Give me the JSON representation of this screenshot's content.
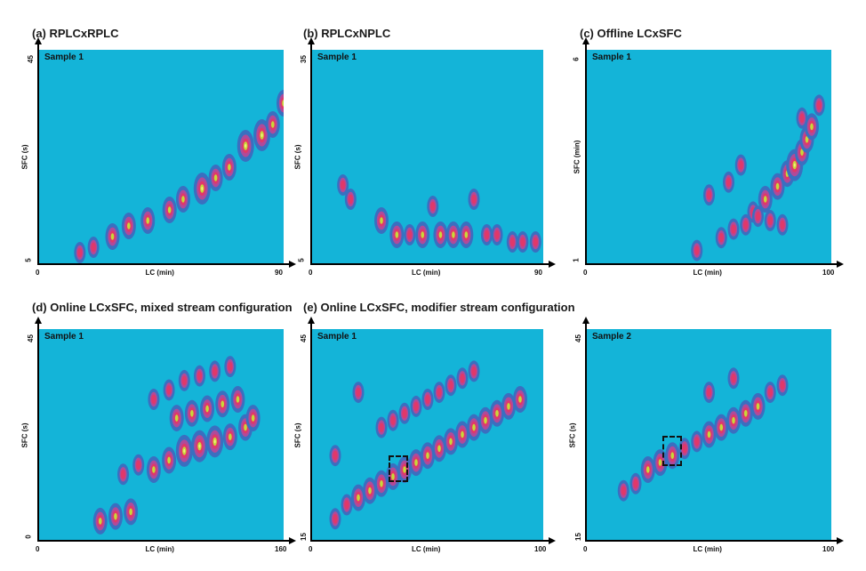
{
  "chart_data": [
    {
      "id": "a",
      "type": "heatmap",
      "title": "(a) RPLCxRPLC",
      "sample": "Sample 1",
      "xlabel": "LC (min)",
      "ylabel": "SFC (s)",
      "xlim": [
        0,
        90
      ],
      "ylim": [
        5,
        45
      ],
      "xticks": [
        "0",
        "90"
      ],
      "yticks": [
        "5",
        "45"
      ],
      "peaks": [
        [
          15,
          7,
          1
        ],
        [
          20,
          8,
          1
        ],
        [
          27,
          10,
          2
        ],
        [
          33,
          12,
          2
        ],
        [
          40,
          13,
          2
        ],
        [
          48,
          15,
          2
        ],
        [
          53,
          17,
          2
        ],
        [
          60,
          19,
          3
        ],
        [
          65,
          21,
          2
        ],
        [
          70,
          23,
          2
        ],
        [
          76,
          27,
          3
        ],
        [
          82,
          29,
          3
        ],
        [
          86,
          31,
          2
        ],
        [
          90,
          35,
          2
        ]
      ]
    },
    {
      "id": "b",
      "type": "heatmap",
      "title": "(b) RPLCxNPLC",
      "sample": "Sample 1",
      "xlabel": "LC (min)",
      "ylabel": "SFC (s)",
      "xlim": [
        0,
        90
      ],
      "ylim": [
        5,
        35
      ],
      "xticks": [
        "0",
        "90"
      ],
      "yticks": [
        "5",
        "35"
      ],
      "peaks": [
        [
          12,
          16,
          1
        ],
        [
          15,
          14,
          1
        ],
        [
          27,
          11,
          2
        ],
        [
          33,
          9,
          2
        ],
        [
          38,
          9,
          1
        ],
        [
          43,
          9,
          2
        ],
        [
          47,
          13,
          1
        ],
        [
          50,
          9,
          2
        ],
        [
          55,
          9,
          2
        ],
        [
          60,
          9,
          2
        ],
        [
          63,
          14,
          1
        ],
        [
          68,
          9,
          1
        ],
        [
          72,
          9,
          1
        ],
        [
          78,
          8,
          1
        ],
        [
          82,
          8,
          1
        ],
        [
          87,
          8,
          1
        ]
      ]
    },
    {
      "id": "c",
      "type": "heatmap",
      "title": "(c) Offline LCxSFC",
      "sample": "Sample 1",
      "xlabel": "LC (min)",
      "ylabel": "SFC (min)",
      "xlim": [
        0,
        100
      ],
      "ylim": [
        1,
        6
      ],
      "xticks": [
        "0",
        "100"
      ],
      "yticks": [
        "1",
        "6"
      ],
      "peaks": [
        [
          45,
          1.3,
          1
        ],
        [
          55,
          1.6,
          1
        ],
        [
          60,
          1.8,
          1
        ],
        [
          68,
          2.2,
          1
        ],
        [
          73,
          2.5,
          2
        ],
        [
          78,
          2.8,
          2
        ],
        [
          82,
          3.1,
          2
        ],
        [
          85,
          3.3,
          3
        ],
        [
          88,
          3.6,
          2
        ],
        [
          90,
          3.9,
          2
        ],
        [
          92,
          4.2,
          2
        ],
        [
          88,
          4.4,
          1
        ],
        [
          95,
          4.7,
          1
        ],
        [
          65,
          1.9,
          1
        ],
        [
          70,
          2.1,
          1
        ],
        [
          75,
          2.0,
          1
        ],
        [
          80,
          1.9,
          1
        ],
        [
          50,
          2.6,
          1
        ],
        [
          58,
          2.9,
          1
        ],
        [
          63,
          3.3,
          1
        ]
      ]
    },
    {
      "id": "d",
      "type": "heatmap",
      "title": "(d) Online LCxSFC, mixed stream configuration",
      "sample": "Sample 1",
      "xlabel": "LC (min)",
      "ylabel": "SFC (s)",
      "xlim": [
        0,
        160
      ],
      "ylim": [
        0,
        45
      ],
      "xticks": [
        "0",
        "160"
      ],
      "yticks": [
        "0",
        "45"
      ],
      "peaks": [
        [
          40,
          4,
          2
        ],
        [
          50,
          5,
          2
        ],
        [
          60,
          6,
          2
        ],
        [
          55,
          14,
          1
        ],
        [
          65,
          16,
          1
        ],
        [
          75,
          15,
          2
        ],
        [
          85,
          17,
          2
        ],
        [
          95,
          19,
          3
        ],
        [
          105,
          20,
          3
        ],
        [
          115,
          21,
          3
        ],
        [
          125,
          22,
          2
        ],
        [
          135,
          24,
          2
        ],
        [
          140,
          26,
          2
        ],
        [
          90,
          26,
          2
        ],
        [
          100,
          27,
          2
        ],
        [
          110,
          28,
          2
        ],
        [
          120,
          29,
          2
        ],
        [
          130,
          30,
          2
        ],
        [
          75,
          30,
          1
        ],
        [
          85,
          32,
          1
        ],
        [
          95,
          34,
          1
        ],
        [
          105,
          35,
          1
        ],
        [
          115,
          36,
          1
        ],
        [
          125,
          37,
          1
        ]
      ]
    },
    {
      "id": "e1",
      "type": "heatmap",
      "title": "(e) Online LCxSFC, modifier stream configuration",
      "sample": "Sample 1",
      "xlabel": "LC (min)",
      "ylabel": "SFC (s)",
      "xlim": [
        0,
        100
      ],
      "ylim": [
        15,
        45
      ],
      "xticks": [
        "0",
        "100"
      ],
      "yticks": [
        "15",
        "45"
      ],
      "peaks": [
        [
          10,
          18,
          1
        ],
        [
          15,
          20,
          1
        ],
        [
          20,
          21,
          2
        ],
        [
          25,
          22,
          2
        ],
        [
          30,
          23,
          2
        ],
        [
          35,
          24,
          2
        ],
        [
          40,
          25,
          2
        ],
        [
          45,
          26,
          2
        ],
        [
          50,
          27,
          2
        ],
        [
          55,
          28,
          2
        ],
        [
          60,
          29,
          2
        ],
        [
          65,
          30,
          2
        ],
        [
          70,
          31,
          2
        ],
        [
          75,
          32,
          2
        ],
        [
          80,
          33,
          2
        ],
        [
          85,
          34,
          2
        ],
        [
          90,
          35,
          2
        ],
        [
          30,
          31,
          1
        ],
        [
          35,
          32,
          1
        ],
        [
          40,
          33,
          1
        ],
        [
          45,
          34,
          1
        ],
        [
          50,
          35,
          1
        ],
        [
          55,
          36,
          1
        ],
        [
          60,
          37,
          1
        ],
        [
          65,
          38,
          1
        ],
        [
          70,
          39,
          1
        ],
        [
          20,
          36,
          1
        ],
        [
          10,
          27,
          1
        ]
      ]
    },
    {
      "id": "e2",
      "type": "heatmap",
      "title": "",
      "sample": "Sample 2",
      "xlabel": "LC (min)",
      "ylabel": "SFC (s)",
      "xlim": [
        0,
        100
      ],
      "ylim": [
        15,
        45
      ],
      "xticks": [
        "0",
        "100"
      ],
      "yticks": [
        "15",
        "45"
      ],
      "peaks": [
        [
          15,
          22,
          1
        ],
        [
          20,
          23,
          1
        ],
        [
          25,
          25,
          2
        ],
        [
          30,
          26,
          2
        ],
        [
          35,
          27,
          2
        ],
        [
          40,
          28,
          1
        ],
        [
          45,
          29,
          1
        ],
        [
          50,
          30,
          2
        ],
        [
          55,
          31,
          2
        ],
        [
          60,
          32,
          2
        ],
        [
          65,
          33,
          2
        ],
        [
          70,
          34,
          2
        ],
        [
          75,
          36,
          1
        ],
        [
          80,
          37,
          1
        ],
        [
          60,
          38,
          1
        ],
        [
          50,
          36,
          1
        ]
      ]
    }
  ]
}
